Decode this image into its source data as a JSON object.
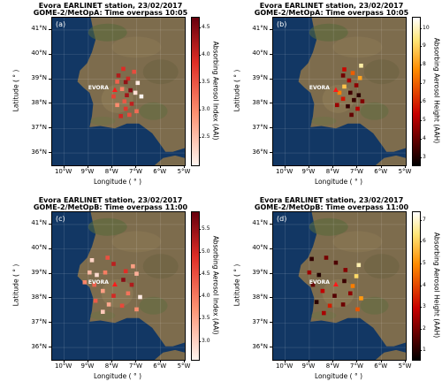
{
  "axis": {
    "xlabel": "Longitude ( ° )",
    "ylabel": "Latitude ( ° )",
    "x_ticks": [
      "10°W",
      "9°W",
      "8°W",
      "7°W",
      "6°W",
      "5°W"
    ],
    "y_ticks": [
      "41°N",
      "40°N",
      "39°N",
      "38°N",
      "37°N",
      "36°N"
    ],
    "lon_range": [
      -10.5,
      -5.0
    ],
    "lat_range": [
      35.5,
      41.5
    ]
  },
  "station": {
    "label": "EVORA",
    "lon": -7.9,
    "lat": 38.57
  },
  "panels": [
    {
      "label": "(a)",
      "title1": "Evora EARLINET station, 23/02/2017",
      "title2": "GOME-2/MetOpA: Time overpass 10:05",
      "colorbar_label": "Absorbing Aerosol Index (AAI)",
      "colorbar_ticks": [
        "4.5",
        "4.0",
        "3.5",
        "3.0",
        "2.5"
      ],
      "colormap": "reds",
      "value_range": [
        2.0,
        4.7
      ],
      "points": [
        {
          "lon": -7.55,
          "lat": 39.42,
          "v": 3.9
        },
        {
          "lon": -7.1,
          "lat": 39.3,
          "v": 3.6
        },
        {
          "lon": -7.75,
          "lat": 39.15,
          "v": 4.2
        },
        {
          "lon": -7.35,
          "lat": 39.02,
          "v": 4.0
        },
        {
          "lon": -7.8,
          "lat": 38.9,
          "v": 3.4
        },
        {
          "lon": -7.45,
          "lat": 38.88,
          "v": 4.4
        },
        {
          "lon": -6.95,
          "lat": 38.85,
          "v": 2.1
        },
        {
          "lon": -7.25,
          "lat": 38.55,
          "v": 4.5
        },
        {
          "lon": -7.6,
          "lat": 38.6,
          "v": 3.1
        },
        {
          "lon": -7.05,
          "lat": 38.45,
          "v": 2.2
        },
        {
          "lon": -6.8,
          "lat": 38.3,
          "v": 2.0
        },
        {
          "lon": -7.95,
          "lat": 38.3,
          "v": 3.7
        },
        {
          "lon": -7.4,
          "lat": 38.35,
          "v": 4.3
        },
        {
          "lon": -7.5,
          "lat": 38.1,
          "v": 3.5
        },
        {
          "lon": -7.2,
          "lat": 38.0,
          "v": 4.1
        },
        {
          "lon": -7.8,
          "lat": 37.95,
          "v": 3.0
        },
        {
          "lon": -7.45,
          "lat": 37.8,
          "v": 3.8
        },
        {
          "lon": -7.0,
          "lat": 37.7,
          "v": 3.3
        },
        {
          "lon": -7.65,
          "lat": 37.5,
          "v": 4.0
        },
        {
          "lon": -7.3,
          "lat": 37.55,
          "v": 3.6
        }
      ]
    },
    {
      "label": "(b)",
      "title1": "Evora EARLINET station, 23/02/2017",
      "title2": "GOME-2/MetOpA: Time overpass 10:05",
      "colorbar_label": "Absorbing Aerosol Height (AAH)",
      "colorbar_ticks": [
        "10",
        "9",
        "8",
        "7",
        "6",
        "5",
        "4",
        "3"
      ],
      "colormap": "hot",
      "value_range": [
        2.6,
        10.6
      ],
      "points": [
        {
          "lon": -6.85,
          "lat": 39.55,
          "v": 9.8
        },
        {
          "lon": -7.55,
          "lat": 39.4,
          "v": 5.5
        },
        {
          "lon": -7.2,
          "lat": 39.25,
          "v": 7.0
        },
        {
          "lon": -7.6,
          "lat": 39.15,
          "v": 4.2
        },
        {
          "lon": -6.9,
          "lat": 39.05,
          "v": 8.2
        },
        {
          "lon": -7.35,
          "lat": 38.95,
          "v": 5.0
        },
        {
          "lon": -7.05,
          "lat": 38.75,
          "v": 4.6
        },
        {
          "lon": -7.55,
          "lat": 38.7,
          "v": 8.8
        },
        {
          "lon": -7.75,
          "lat": 38.45,
          "v": 7.6
        },
        {
          "lon": -7.3,
          "lat": 38.45,
          "v": 3.5
        },
        {
          "lon": -6.95,
          "lat": 38.35,
          "v": 3.2
        },
        {
          "lon": -7.6,
          "lat": 38.2,
          "v": 5.8
        },
        {
          "lon": -7.15,
          "lat": 38.15,
          "v": 3.4
        },
        {
          "lon": -6.8,
          "lat": 38.1,
          "v": 4.4
        },
        {
          "lon": -7.85,
          "lat": 37.95,
          "v": 4.8
        },
        {
          "lon": -7.4,
          "lat": 37.9,
          "v": 3.3
        },
        {
          "lon": -7.0,
          "lat": 37.8,
          "v": 5.2
        },
        {
          "lon": -7.25,
          "lat": 37.55,
          "v": 4.0
        }
      ]
    },
    {
      "label": "(c)",
      "title1": "Evora EARLINET station, 23/02/2017",
      "title2": "GOME-2/MetOpB: Time overpass 11:00",
      "colorbar_label": "Absorbing Aerosol Index (AAI)",
      "colorbar_ticks": [
        "5.5",
        "5.0",
        "4.5",
        "4.0",
        "3.5",
        "3.0"
      ],
      "colormap": "reds",
      "value_range": [
        2.6,
        5.9
      ],
      "points": [
        {
          "lon": -8.85,
          "lat": 39.55,
          "v": 3.0
        },
        {
          "lon": -8.2,
          "lat": 39.65,
          "v": 4.5
        },
        {
          "lon": -7.95,
          "lat": 39.4,
          "v": 5.2
        },
        {
          "lon": -7.15,
          "lat": 39.3,
          "v": 3.6
        },
        {
          "lon": -8.95,
          "lat": 39.05,
          "v": 3.3
        },
        {
          "lon": -8.65,
          "lat": 38.95,
          "v": 2.9
        },
        {
          "lon": -8.3,
          "lat": 39.05,
          "v": 4.0
        },
        {
          "lon": -7.45,
          "lat": 39.1,
          "v": 4.9
        },
        {
          "lon": -7.0,
          "lat": 39.0,
          "v": 3.4
        },
        {
          "lon": -9.15,
          "lat": 38.65,
          "v": 3.9
        },
        {
          "lon": -8.75,
          "lat": 38.55,
          "v": 4.3
        },
        {
          "lon": -7.55,
          "lat": 38.75,
          "v": 5.6
        },
        {
          "lon": -7.2,
          "lat": 38.55,
          "v": 5.3
        },
        {
          "lon": -8.4,
          "lat": 38.3,
          "v": 3.6
        },
        {
          "lon": -7.95,
          "lat": 38.1,
          "v": 5.0
        },
        {
          "lon": -7.35,
          "lat": 38.2,
          "v": 4.1
        },
        {
          "lon": -6.85,
          "lat": 38.05,
          "v": 2.7
        },
        {
          "lon": -8.7,
          "lat": 37.9,
          "v": 4.4
        },
        {
          "lon": -8.15,
          "lat": 37.75,
          "v": 3.5
        },
        {
          "lon": -7.6,
          "lat": 37.7,
          "v": 4.6
        },
        {
          "lon": -7.0,
          "lat": 37.55,
          "v": 3.8
        },
        {
          "lon": -8.4,
          "lat": 37.45,
          "v": 3.1
        }
      ]
    },
    {
      "label": "(d)",
      "title1": "Evora EARLINET station, 23/02/2017",
      "title2": "GOME-2/MetOpB: Time overpass 11:00",
      "colorbar_label": "Absorbing Aerosol Height (AAH)",
      "colorbar_ticks": [
        "7",
        "6",
        "5",
        "4",
        "3",
        "2",
        "1"
      ],
      "colormap": "hot",
      "value_range": [
        0.6,
        7.4
      ],
      "points": [
        {
          "lon": -8.9,
          "lat": 39.6,
          "v": 1.2
        },
        {
          "lon": -8.3,
          "lat": 39.65,
          "v": 2.0
        },
        {
          "lon": -7.9,
          "lat": 39.45,
          "v": 1.5
        },
        {
          "lon": -6.95,
          "lat": 39.35,
          "v": 6.8
        },
        {
          "lon": -9.0,
          "lat": 39.05,
          "v": 2.5
        },
        {
          "lon": -8.6,
          "lat": 38.95,
          "v": 1.0
        },
        {
          "lon": -7.5,
          "lat": 39.15,
          "v": 2.2
        },
        {
          "lon": -7.05,
          "lat": 38.9,
          "v": 6.2
        },
        {
          "lon": -8.85,
          "lat": 38.55,
          "v": 1.8
        },
        {
          "lon": -7.55,
          "lat": 38.7,
          "v": 1.3
        },
        {
          "lon": -7.2,
          "lat": 38.5,
          "v": 4.8
        },
        {
          "lon": -8.45,
          "lat": 38.3,
          "v": 2.9
        },
        {
          "lon": -7.95,
          "lat": 38.1,
          "v": 1.6
        },
        {
          "lon": -7.3,
          "lat": 38.2,
          "v": 2.3
        },
        {
          "lon": -6.85,
          "lat": 38.0,
          "v": 5.2
        },
        {
          "lon": -8.7,
          "lat": 37.85,
          "v": 1.1
        },
        {
          "lon": -8.15,
          "lat": 37.7,
          "v": 3.4
        },
        {
          "lon": -7.6,
          "lat": 37.75,
          "v": 1.9
        },
        {
          "lon": -7.0,
          "lat": 37.55,
          "v": 4.2
        },
        {
          "lon": -8.4,
          "lat": 37.4,
          "v": 2.6
        }
      ]
    }
  ]
}
